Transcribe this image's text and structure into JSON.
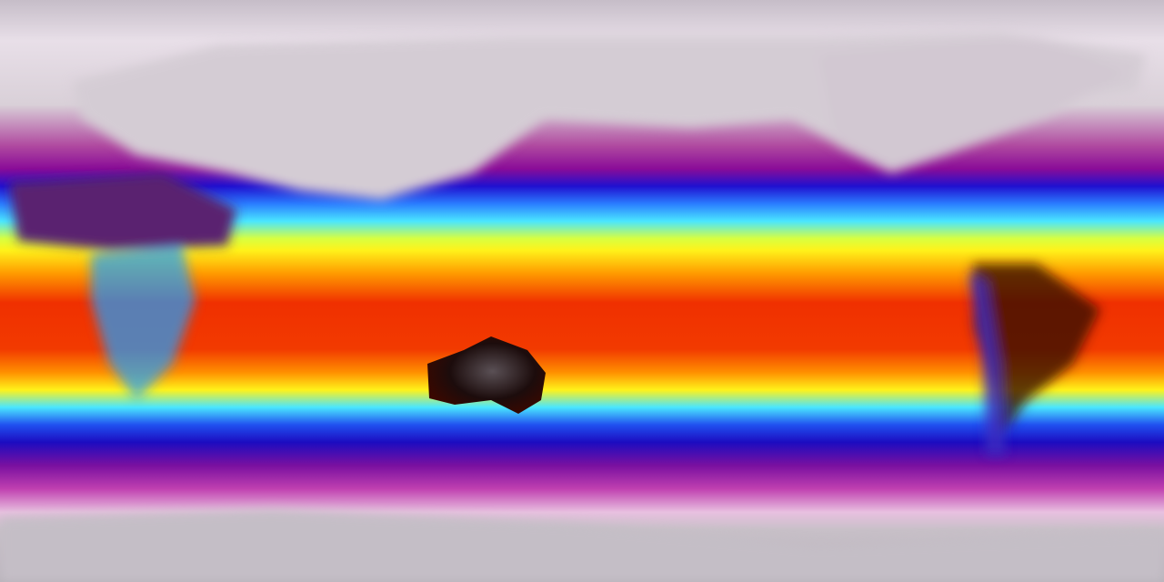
{
  "map": {
    "projection": "equirectangular",
    "variable_colormap": [
      "#c9c0ca",
      "#f2e6f0",
      "#b0108f",
      "#1a10d0",
      "#40e8ff",
      "#ffff20",
      "#ff9000",
      "#ff2800",
      "#e01000",
      "#200808"
    ],
    "colors": {
      "polar": "#bfb8c2",
      "cold_land": "#d8d0d6",
      "magenta": "#a0108c",
      "blue": "#1c0cd0",
      "cyan": "#4ae6ff",
      "yellow": "#fff21a",
      "orange": "#ff8a00",
      "red": "#f02a00",
      "hot_land": "#1c0c0c"
    }
  }
}
